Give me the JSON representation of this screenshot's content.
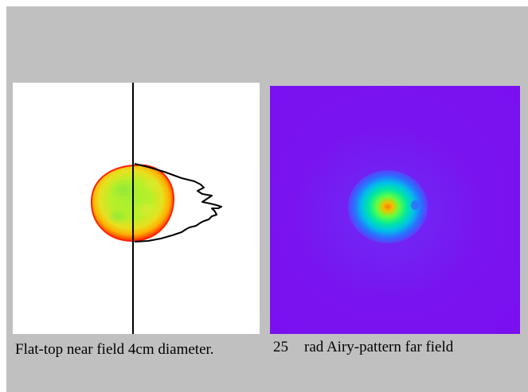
{
  "figure": {
    "near_field": {
      "caption": "Flat-top near field 4cm diameter.",
      "colors": {
        "background": "#ffffff",
        "beam_edge": "#ff2a00",
        "beam_ring": "#ffb000",
        "beam_center": "#a8f030",
        "profile_line": "#000000"
      }
    },
    "far_field": {
      "caption_value": "25",
      "caption_text": "rad Airy-pattern far field",
      "colors": {
        "background": "#7a10f0",
        "outer_ring": "#3a60ff",
        "mid_ring": "#00d8d0",
        "inner_ring": "#40ff60",
        "peak": "#ff8800"
      }
    },
    "background_color": "#c0c0c0"
  }
}
